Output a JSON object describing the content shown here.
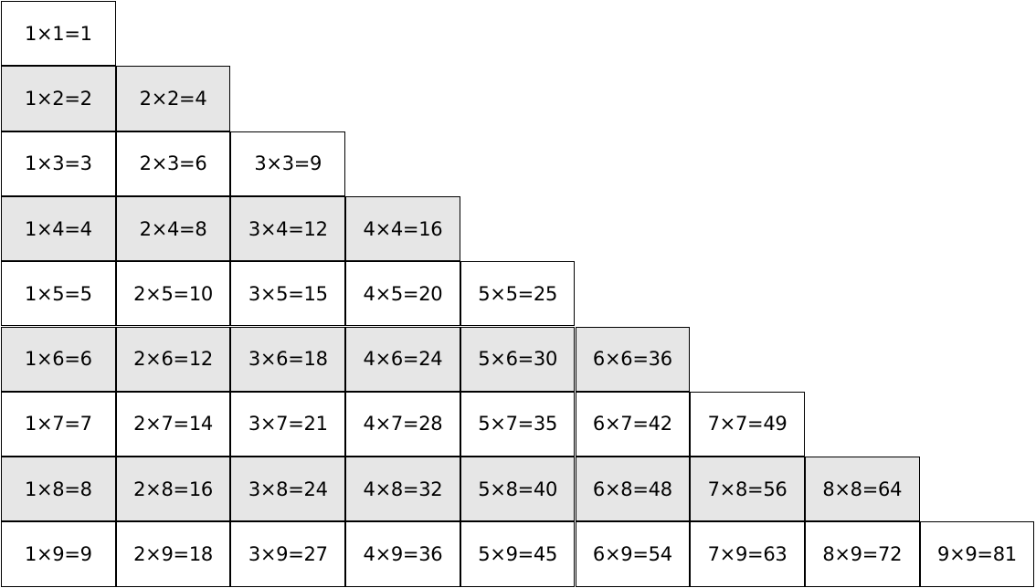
{
  "table": {
    "shaded_color": "#e6e6e6",
    "plain_color": "#ffffff",
    "rows": [
      [
        "1×1=1"
      ],
      [
        "1×2=2",
        "2×2=4"
      ],
      [
        "1×3=3",
        "2×3=6",
        "3×3=9"
      ],
      [
        "1×4=4",
        "2×4=8",
        "3×4=12",
        "4×4=16"
      ],
      [
        "1×5=5",
        "2×5=10",
        "3×5=15",
        "4×5=20",
        "5×5=25"
      ],
      [
        "1×6=6",
        "2×6=12",
        "3×6=18",
        "4×6=24",
        "5×6=30",
        "6×6=36"
      ],
      [
        "1×7=7",
        "2×7=14",
        "3×7=21",
        "4×7=28",
        "5×7=35",
        "6×7=42",
        "7×7=49"
      ],
      [
        "1×8=8",
        "2×8=16",
        "3×8=24",
        "4×8=32",
        "5×8=40",
        "6×8=48",
        "7×8=56",
        "8×8=64"
      ],
      [
        "1×9=9",
        "2×9=18",
        "3×9=27",
        "4×9=36",
        "5×9=45",
        "6×9=54",
        "7×9=63",
        "8×9=72",
        "9×9=81"
      ]
    ]
  }
}
